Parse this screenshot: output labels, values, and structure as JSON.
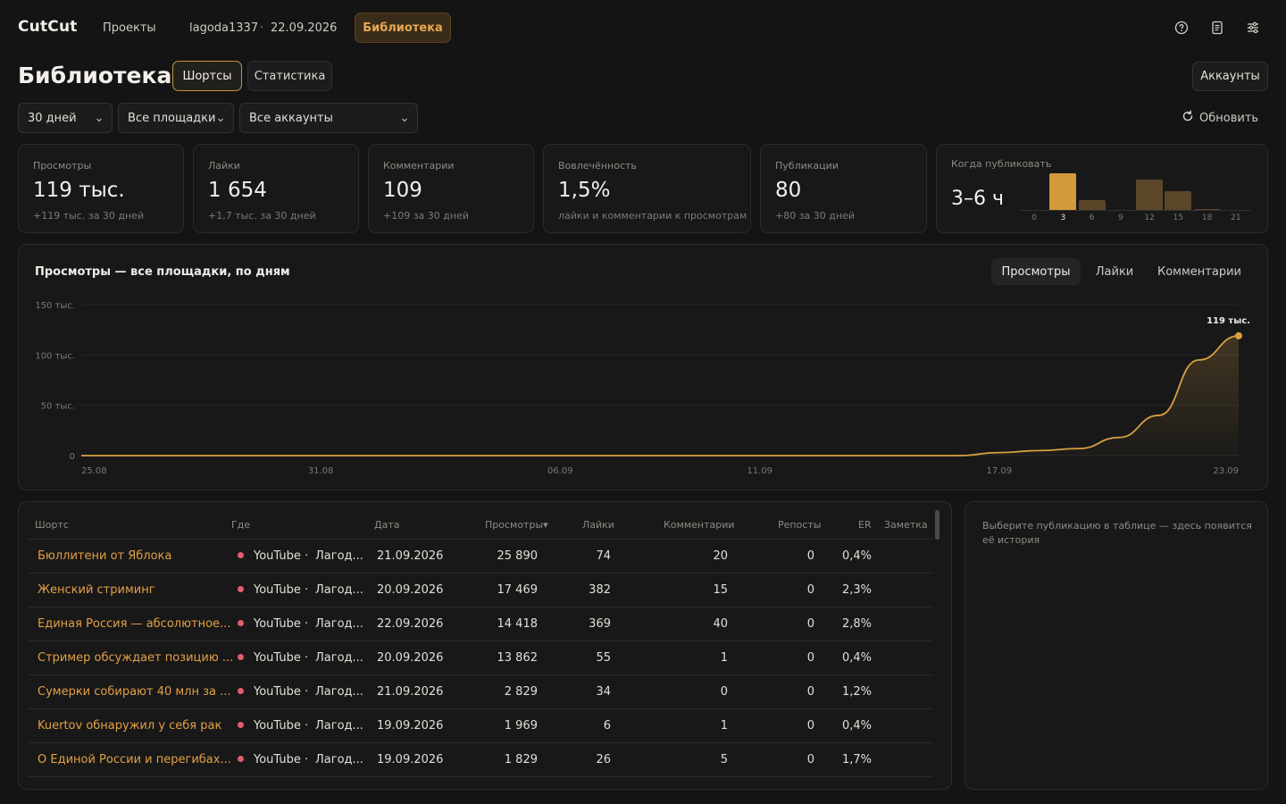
{
  "app": {
    "name": "CutCut"
  },
  "topnav": {
    "projects": "Проекты",
    "user": "lagoda1337",
    "separator": "·",
    "date": "22.09.2026",
    "library": "Библиотека"
  },
  "header": {
    "title": "Библиотека",
    "tabs": [
      "Шортсы",
      "Статистика"
    ],
    "accounts_button": "Аккаунты"
  },
  "filters": {
    "period": "30 дней",
    "platform": "Все площадки",
    "account": "Все аккаунты",
    "refresh": "Обновить"
  },
  "stats": {
    "views": {
      "label": "Просмотры",
      "value": "119 тыс.",
      "sub": "+119 тыс. за 30 дней"
    },
    "likes": {
      "label": "Лайки",
      "value": "1 654",
      "sub": "+1,7 тыс. за 30 дней"
    },
    "comments": {
      "label": "Комментарии",
      "value": "109",
      "sub": "+109 за 30 дней"
    },
    "engagement": {
      "label": "Вовлечённость",
      "value": "1,5%",
      "sub": "лайки и комментарии к просмотрам"
    },
    "publications": {
      "label": "Публикации",
      "value": "80",
      "sub": "+80 за 30 дней"
    },
    "when": {
      "label": "Когда публиковать",
      "value": "3–6 ч",
      "ticks": [
        "0",
        "3",
        "6",
        "9",
        "12",
        "15",
        "18",
        "21"
      ],
      "levels": [
        0.0,
        1.0,
        0.28,
        0.0,
        0.83,
        0.52,
        0.04,
        0.02
      ],
      "highlight_index": 1
    }
  },
  "chart": {
    "title": "Просмотры — все площадки, по дням",
    "tabs": [
      "Просмотры",
      "Лайки",
      "Комментарии"
    ],
    "end_label": "119 тыс."
  },
  "chart_data": {
    "type": "area",
    "title": "Просмотры — все площадки, по дням",
    "x": [
      "25.08",
      "26.08",
      "27.08",
      "28.08",
      "29.08",
      "30.08",
      "31.08",
      "01.09",
      "02.09",
      "03.09",
      "04.09",
      "05.09",
      "06.09",
      "07.09",
      "08.09",
      "09.09",
      "10.09",
      "11.09",
      "12.09",
      "13.09",
      "14.09",
      "15.09",
      "16.09",
      "17.09",
      "18.09",
      "19.09",
      "20.09",
      "21.09",
      "22.09",
      "23.09"
    ],
    "x_tick_labels": [
      "25.08",
      "31.08",
      "06.09",
      "11.09",
      "17.09",
      "23.09"
    ],
    "series": [
      {
        "values": [
          0,
          0,
          0,
          0,
          0,
          0,
          0,
          0,
          0,
          0,
          0,
          0,
          0,
          0,
          0,
          0,
          0,
          0,
          0,
          0,
          0,
          0,
          0,
          3000,
          5000,
          7000,
          18000,
          40000,
          95000,
          119000
        ]
      }
    ],
    "y_tick_labels": [
      "0",
      "50 тыс.",
      "100 тыс.",
      "150 тыс."
    ],
    "ylim": [
      0,
      150000
    ],
    "grid": true,
    "color": "#d6a042"
  },
  "table": {
    "headers": [
      "Шортс",
      "Где",
      "Дата",
      "Просмотры",
      "Лайки",
      "Комментарии",
      "Репосты",
      "ER",
      "Заметка"
    ],
    "sort_indicator": "▾",
    "rows": [
      {
        "title": "Бюллитени от Яблока",
        "platform": "YouTube",
        "account": "Лагод...",
        "date": "21.09.2026",
        "views": "25 890",
        "likes": "74",
        "comments": "20",
        "reposts": "0",
        "er": "0,4%"
      },
      {
        "title": "Женский стриминг",
        "platform": "YouTube",
        "account": "Лагод...",
        "date": "20.09.2026",
        "views": "17 469",
        "likes": "382",
        "comments": "15",
        "reposts": "0",
        "er": "2,3%"
      },
      {
        "title": "Единая Россия — абсолютное...",
        "platform": "YouTube",
        "account": "Лагод...",
        "date": "22.09.2026",
        "views": "14 418",
        "likes": "369",
        "comments": "40",
        "reposts": "0",
        "er": "2,8%"
      },
      {
        "title": "Стример обсуждает позицию ...",
        "platform": "YouTube",
        "account": "Лагод...",
        "date": "20.09.2026",
        "views": "13 862",
        "likes": "55",
        "comments": "1",
        "reposts": "0",
        "er": "0,4%"
      },
      {
        "title": "Сумерки собирают 40 млн за ...",
        "platform": "YouTube",
        "account": "Лагод...",
        "date": "21.09.2026",
        "views": "2 829",
        "likes": "34",
        "comments": "0",
        "reposts": "0",
        "er": "1,2%"
      },
      {
        "title": "Kuertov обнаружил у себя рак",
        "platform": "YouTube",
        "account": "Лагод...",
        "date": "19.09.2026",
        "views": "1 969",
        "likes": "6",
        "comments": "1",
        "reposts": "0",
        "er": "0,4%"
      },
      {
        "title": "О Единой России и перегибах...",
        "platform": "YouTube",
        "account": "Лагод...",
        "date": "19.09.2026",
        "views": "1 829",
        "likes": "26",
        "comments": "5",
        "reposts": "0",
        "er": "1,7%"
      }
    ]
  },
  "history": {
    "placeholder": "Выберите публикацию в таблице — здесь появится её история"
  },
  "colors": {
    "accent": "#d6a042",
    "background": "#141414",
    "panel": "#181818",
    "platform_dot": "#e35d6a"
  }
}
